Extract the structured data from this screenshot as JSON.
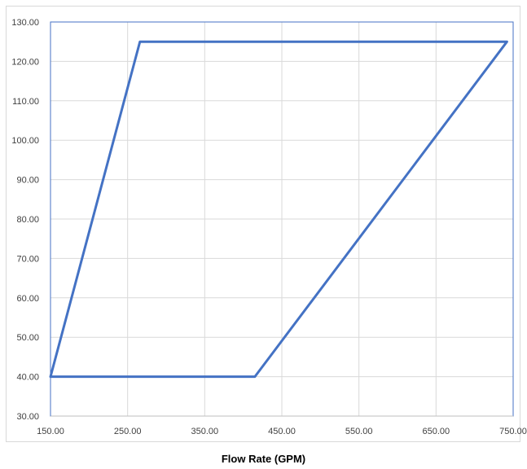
{
  "chart_data": {
    "type": "line",
    "title": "",
    "xlabel": "Flow Rate (GPM)",
    "ylabel": "",
    "xlim": [
      150,
      750
    ],
    "ylim": [
      30,
      130
    ],
    "x_ticks": [
      "150.00",
      "250.00",
      "350.00",
      "450.00",
      "550.00",
      "650.00",
      "750.00"
    ],
    "y_ticks": [
      "30.00",
      "40.00",
      "50.00",
      "60.00",
      "70.00",
      "80.00",
      "90.00",
      "100.00",
      "110.00",
      "120.00",
      "130.00"
    ],
    "grid": true,
    "series": [
      {
        "color": "#4472c4",
        "points": [
          [
            150,
            40
          ],
          [
            266,
            125
          ],
          [
            742,
            125
          ],
          [
            415,
            40
          ],
          [
            150,
            40
          ]
        ]
      }
    ]
  }
}
